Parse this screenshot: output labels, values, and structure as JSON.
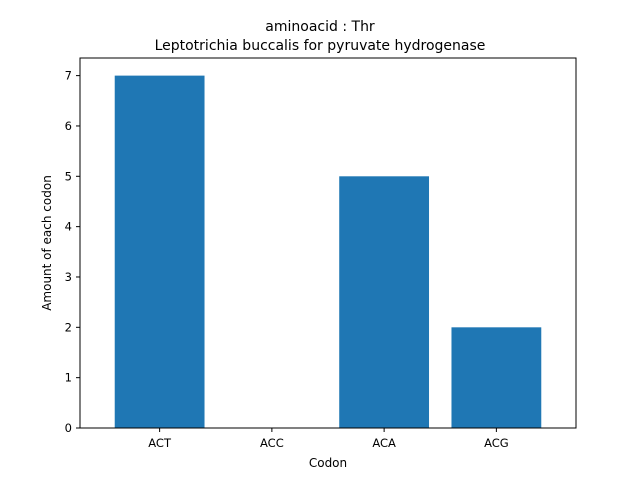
{
  "chart_data": {
    "type": "bar",
    "title_line1": "aminoacid : Thr",
    "title_line2": "Leptotrichia buccalis for pyruvate hydrogenase",
    "xlabel": "Codon",
    "ylabel": "Amount of each codon",
    "categories": [
      "ACT",
      "ACC",
      "ACA",
      "ACG"
    ],
    "values": [
      7,
      0,
      5,
      2
    ],
    "ylim": [
      0,
      7.35
    ],
    "yticks": [
      0,
      1,
      2,
      3,
      4,
      5,
      6,
      7
    ],
    "bar_color": "#1f77b4",
    "grid": false,
    "legend": "none"
  }
}
